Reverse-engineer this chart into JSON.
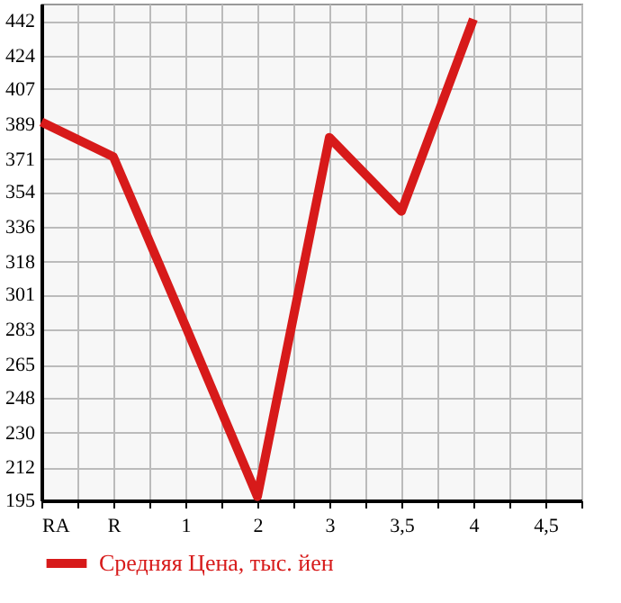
{
  "chart_data": {
    "type": "line",
    "categories": [
      "RA",
      "R",
      "1",
      "2",
      "3",
      "3,5",
      "4",
      "4,5"
    ],
    "series": [
      {
        "name": "Средняя Цена, тыс. йен",
        "color": "#d71a1a",
        "values": [
          390,
          372,
          285,
          197,
          382,
          344,
          443,
          null
        ]
      }
    ],
    "ylim": [
      195,
      451
    ],
    "yticks": [
      195,
      212,
      230,
      248,
      265,
      283,
      301,
      318,
      336,
      354,
      371,
      389,
      407,
      424,
      442
    ],
    "grid": true,
    "legend": "bottom left",
    "marker": "none",
    "line_style": "solid"
  }
}
